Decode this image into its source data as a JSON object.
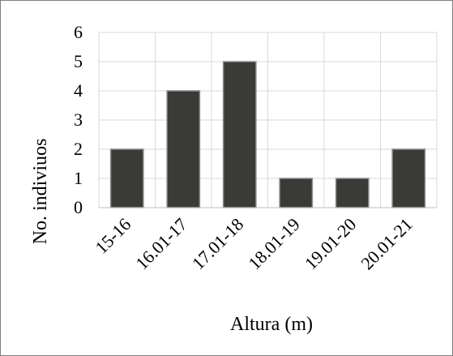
{
  "chart_data": {
    "type": "bar",
    "title": "",
    "xlabel": "Altura (m)",
    "ylabel": "No. indiviuos",
    "categories": [
      "15-16",
      "16.01-17",
      "17.01-18",
      "18.01-19",
      "19.01-20",
      "20.01-21"
    ],
    "values": [
      2,
      4,
      5,
      1,
      1,
      2
    ],
    "ylim": [
      0,
      6
    ],
    "yticks": [
      "0",
      "1",
      "2",
      "3",
      "4",
      "5",
      "6"
    ],
    "grid": true,
    "legend": "none",
    "colors": {
      "bar": "#3a3a38",
      "bar_outline": "#8c8c8c",
      "grid": "#d9d9d9",
      "frame": "#7f7f7f"
    }
  }
}
